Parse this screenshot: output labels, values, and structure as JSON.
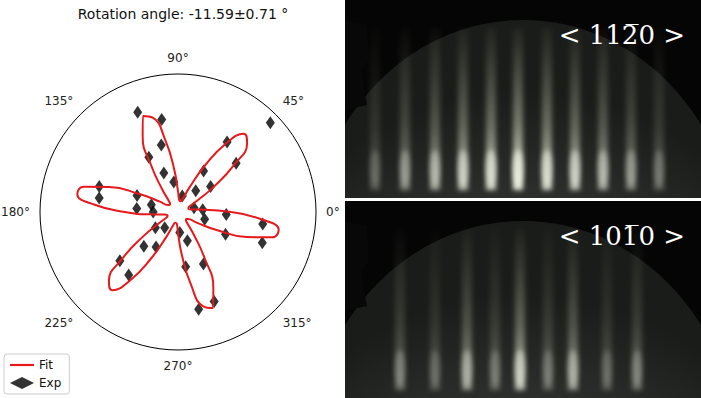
{
  "chart_data": {
    "type": "polar",
    "title": "Rotation angle: -11.59±0.71 °",
    "xlim": [
      0,
      360
    ],
    "xticks": [
      {
        "value": 0,
        "label": "0°"
      },
      {
        "value": 45,
        "label": "45°"
      },
      {
        "value": 90,
        "label": "90°"
      },
      {
        "value": 135,
        "label": "135°"
      },
      {
        "value": 180,
        "label": "180°"
      },
      {
        "value": 225,
        "label": "225°"
      },
      {
        "value": 270,
        "label": "270°"
      },
      {
        "value": 315,
        "label": "315°"
      }
    ],
    "ylim": [
      0,
      1
    ],
    "tick_labels": "x",
    "grid": false,
    "legend": "lower left",
    "series": [
      {
        "name": "Fit",
        "type": "line",
        "color": "#e8191c",
        "line_style": "solid",
        "theta": [
          0,
          5,
          10,
          15,
          20,
          25,
          30,
          35,
          40,
          45,
          50,
          55,
          60,
          65,
          70,
          75,
          80,
          85,
          90,
          95,
          100,
          105,
          110,
          115,
          120,
          125,
          130,
          135,
          140,
          145,
          150,
          155,
          160,
          165,
          170,
          175,
          180,
          185,
          190,
          195,
          200,
          205,
          210,
          215,
          220,
          225,
          230,
          235,
          240,
          245,
          250,
          255,
          260,
          265,
          270,
          275,
          280,
          285,
          290,
          295,
          300,
          305,
          310,
          315,
          320,
          325,
          330,
          335,
          340,
          345,
          350,
          355,
          360
        ],
        "r": [
          0.385,
          0.197,
          0.102,
          0.081,
          0.08,
          0.089,
          0.151,
          0.308,
          0.529,
          0.708,
          0.741,
          0.606,
          0.385,
          0.197,
          0.102,
          0.081,
          0.08,
          0.089,
          0.151,
          0.308,
          0.529,
          0.708,
          0.741,
          0.606,
          0.385,
          0.197,
          0.102,
          0.081,
          0.08,
          0.089,
          0.151,
          0.308,
          0.529,
          0.708,
          0.741,
          0.606,
          0.385,
          0.197,
          0.102,
          0.081,
          0.08,
          0.089,
          0.151,
          0.308,
          0.529,
          0.708,
          0.741,
          0.606,
          0.385,
          0.197,
          0.102,
          0.081,
          0.08,
          0.089,
          0.151,
          0.308,
          0.529,
          0.708,
          0.741,
          0.606,
          0.385,
          0.197,
          0.102,
          0.081,
          0.08,
          0.089,
          0.151,
          0.308,
          0.529,
          0.708,
          0.741,
          0.606,
          0.385
        ]
      },
      {
        "name": "Exp",
        "type": "scatter",
        "color": "#000000",
        "marker": "diamond",
        "theta": [
          44,
          55,
          40,
          58,
          38,
          50,
          100,
          112,
          104,
          118,
          110,
          98,
          162,
          170,
          158,
          175,
          165,
          180,
          220,
          232,
          225,
          238,
          215,
          230,
          282,
          292,
          278,
          296,
          288,
          275,
          340,
          352,
          335,
          357,
          345,
          5,
          15,
          75
        ],
        "r": [
          0.93,
          0.62,
          0.55,
          0.35,
          0.3,
          0.2,
          0.68,
          0.78,
          0.5,
          0.45,
          0.3,
          0.22,
          0.6,
          0.58,
          0.32,
          0.3,
          0.2,
          0.18,
          0.55,
          0.58,
          0.35,
          0.3,
          0.2,
          0.15,
          0.72,
          0.7,
          0.4,
          0.42,
          0.22,
          0.15,
          0.65,
          0.62,
          0.38,
          0.35,
          0.2,
          0.18,
          0.12,
          0.12
        ]
      }
    ]
  },
  "panels": [
    {
      "label": "< 112̅0 >"
    },
    {
      "label": "< 101̅0 >"
    }
  ]
}
